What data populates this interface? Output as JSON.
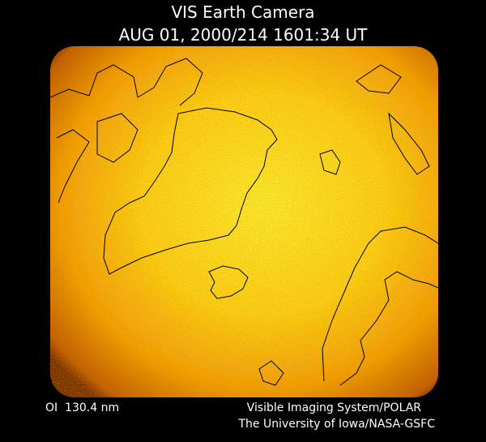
{
  "header": {
    "title": "VIS Earth Camera",
    "timestamp": "AUG 01, 2000/214 1601:34 UT"
  },
  "footer": {
    "filter": "OI  130.4 nm",
    "instrument": "Visible Imaging System/POLAR",
    "credit": "The University of Iowa/NASA-GSFC"
  }
}
